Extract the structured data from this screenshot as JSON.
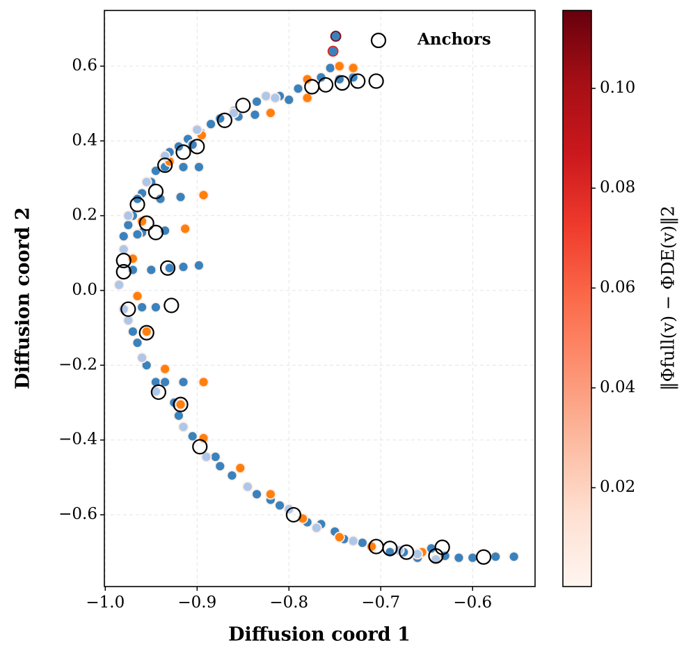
{
  "chart_data": {
    "type": "scatter",
    "xlabel": "Diffusion coord 1",
    "ylabel": "Diffusion coord 2",
    "xlim": [
      -1.001,
      -0.532
    ],
    "ylim": [
      -0.792,
      0.749
    ],
    "xticks": [
      {
        "value": -1.0,
        "label": "−1.0"
      },
      {
        "value": -0.9,
        "label": "−0.9"
      },
      {
        "value": -0.8,
        "label": "−0.8"
      },
      {
        "value": -0.7,
        "label": "−0.7"
      },
      {
        "value": -0.6,
        "label": "−0.6"
      }
    ],
    "yticks": [
      {
        "value": -0.6,
        "label": "−0.6"
      },
      {
        "value": -0.4,
        "label": "−0.4"
      },
      {
        "value": -0.2,
        "label": "−0.2"
      },
      {
        "value": 0,
        "label": "0.0"
      },
      0.2,
      0.4,
      0.6
    ],
    "grid": true,
    "legend": "upper right",
    "series": [
      {
        "color": "#3a82bd",
        "x": [
          -0.749,
          -0.752,
          -0.755,
          -0.765,
          -0.79,
          -0.81,
          -0.8,
          -0.835,
          -0.837,
          -0.855,
          -0.86,
          -0.875,
          -0.885,
          -0.895,
          -0.91,
          -0.905,
          -0.92,
          -0.93,
          -0.935,
          -0.915,
          -0.898,
          -0.945,
          -0.95,
          -0.96,
          -0.965,
          -0.94,
          -0.918,
          -0.97,
          -0.975,
          -0.96,
          -0.965,
          -0.935,
          -0.98,
          -0.97,
          -0.95,
          -0.93,
          -0.915,
          -0.898,
          -0.96,
          -0.945,
          -0.97,
          -0.965,
          -0.955,
          -0.945,
          -0.935,
          -0.915,
          -0.925,
          -0.92,
          -0.905,
          -0.88,
          -0.875,
          -0.862,
          -0.835,
          -0.82,
          -0.81,
          -0.78,
          -0.765,
          -0.75,
          -0.74,
          -0.72,
          -0.69,
          -0.675,
          -0.66,
          -0.645,
          -0.63,
          -0.615,
          -0.6,
          -0.575,
          -0.555,
          -0.745,
          -0.73
        ],
        "values": [
          0.68,
          0.64,
          0.595,
          0.57,
          0.54,
          0.52,
          0.51,
          0.505,
          0.47,
          0.465,
          0.48,
          0.46,
          0.445,
          0.42,
          0.405,
          0.39,
          0.385,
          0.37,
          0.33,
          0.33,
          0.33,
          0.32,
          0.29,
          0.26,
          0.245,
          0.245,
          0.25,
          0.2,
          0.175,
          0.155,
          0.15,
          0.16,
          0.145,
          0.055,
          0.055,
          0.06,
          0.063,
          0.067,
          -0.045,
          -0.045,
          -0.11,
          -0.14,
          -0.2,
          -0.245,
          -0.245,
          -0.245,
          -0.3,
          -0.335,
          -0.39,
          -0.445,
          -0.47,
          -0.495,
          -0.545,
          -0.56,
          -0.575,
          -0.62,
          -0.625,
          -0.645,
          -0.665,
          -0.675,
          -0.7,
          -0.7,
          -0.715,
          -0.69,
          -0.71,
          -0.715,
          -0.715,
          -0.712,
          -0.712,
          0.565,
          0.57
        ],
        "errors": [
          0.11,
          0.08,
          0.004,
          0.003,
          0.003,
          0.003,
          0.003,
          0.003,
          0.003,
          0.003,
          0.003,
          0.003,
          0.003,
          0.003,
          0.003,
          0.003,
          0.003,
          0.003,
          0.003,
          0.003,
          0.003,
          0.003,
          0.003,
          0.003,
          0.003,
          0.003,
          0.003,
          0.003,
          0.003,
          0.003,
          0.003,
          0.003,
          0.003,
          0.003,
          0.003,
          0.003,
          0.003,
          0.003,
          0.003,
          0.003,
          0.003,
          0.003,
          0.003,
          0.003,
          0.003,
          0.003,
          0.003,
          0.003,
          0.003,
          0.003,
          0.003,
          0.003,
          0.003,
          0.003,
          0.003,
          0.003,
          0.003,
          0.003,
          0.003,
          0.003,
          0.003,
          0.003,
          0.01,
          0.003,
          0.003,
          0.003,
          0.003,
          0.003,
          0.003,
          0.003,
          0.003
        ]
      },
      {
        "color": "#ff7f0e",
        "x": [
          -0.745,
          -0.73,
          -0.78,
          -0.78,
          -0.82,
          -0.895,
          -0.93,
          -0.893,
          -0.96,
          -0.913,
          -0.97,
          -0.965,
          -0.955,
          -0.935,
          -0.893,
          -0.918,
          -0.893,
          -0.853,
          -0.82,
          -0.785,
          -0.745,
          -0.71,
          -0.655
        ],
        "values": [
          0.6,
          0.595,
          0.565,
          0.515,
          0.475,
          0.415,
          0.345,
          0.255,
          0.185,
          0.165,
          0.085,
          -0.015,
          -0.11,
          -0.21,
          -0.245,
          -0.305,
          -0.395,
          -0.475,
          -0.545,
          -0.61,
          -0.66,
          -0.685,
          -0.7
        ],
        "errors": [
          0.01,
          0.01,
          0.005,
          0.01,
          0.005,
          0.005,
          0.005,
          0.005,
          0.005,
          0.005,
          0.005,
          0.005,
          0.005,
          0.005,
          0.005,
          0.005,
          0.005,
          0.005,
          0.005,
          0.005,
          0.005,
          0.005,
          0.005
        ]
      },
      {
        "color": "#aec7e8",
        "x": [
          -0.825,
          -0.815,
          -0.86,
          -0.9,
          -0.935,
          -0.955,
          -0.975,
          -0.98,
          -0.985,
          -0.98,
          -0.975,
          -0.96,
          -0.945,
          -0.915,
          -0.89,
          -0.845,
          -0.8,
          -0.77,
          -0.73,
          -0.68,
          -0.66,
          -0.64
        ],
        "values": [
          0.52,
          0.515,
          0.475,
          0.43,
          0.36,
          0.29,
          0.2,
          0.11,
          0.015,
          -0.05,
          -0.08,
          -0.18,
          -0.27,
          -0.365,
          -0.445,
          -0.525,
          -0.585,
          -0.635,
          -0.67,
          -0.695,
          -0.705,
          -0.72
        ],
        "errors": [
          0.005,
          0.005,
          0.005,
          0.005,
          0.005,
          0.005,
          0.005,
          0.005,
          0.005,
          0.005,
          0.005,
          0.005,
          0.005,
          0.005,
          0.005,
          0.005,
          0.005,
          0.005,
          0.005,
          0.005,
          0.005,
          0.01
        ]
      },
      {
        "name": "Anchors",
        "color": "#000000",
        "hollow": true,
        "x": [
          -0.705,
          -0.725,
          -0.742,
          -0.76,
          -0.775,
          -0.85,
          -0.87,
          -0.9,
          -0.915,
          -0.935,
          -0.945,
          -0.965,
          -0.955,
          -0.945,
          -0.98,
          -0.98,
          -0.932,
          -0.975,
          -0.928,
          -0.955,
          -0.942,
          -0.918,
          -0.897,
          -0.795,
          -0.705,
          -0.69,
          -0.672,
          -0.64,
          -0.633,
          -0.588
        ],
        "values": [
          0.56,
          0.56,
          0.555,
          0.55,
          0.545,
          0.495,
          0.455,
          0.385,
          0.37,
          0.335,
          0.265,
          0.23,
          0.18,
          0.155,
          0.08,
          0.05,
          0.06,
          -0.05,
          -0.04,
          -0.113,
          -0.272,
          -0.305,
          -0.418,
          -0.6,
          -0.685,
          -0.69,
          -0.7,
          -0.71,
          -0.687,
          -0.713
        ]
      }
    ],
    "colorbar": {
      "label": "‖Φfull(v) − ΦDE(v)‖2",
      "lim": [
        0.0002,
        0.1156
      ],
      "ticks": [
        0.02,
        0.04,
        0.06,
        0.08,
        {
          "value": 0.1,
          "label": "0.10"
        }
      ],
      "colors": [
        "#fff5f0",
        "#fee0d2",
        "#fcbba1",
        "#fc9272",
        "#fb6a4a",
        "#ef3b2c",
        "#cb181d",
        "#a50f15",
        "#67000d"
      ]
    }
  }
}
